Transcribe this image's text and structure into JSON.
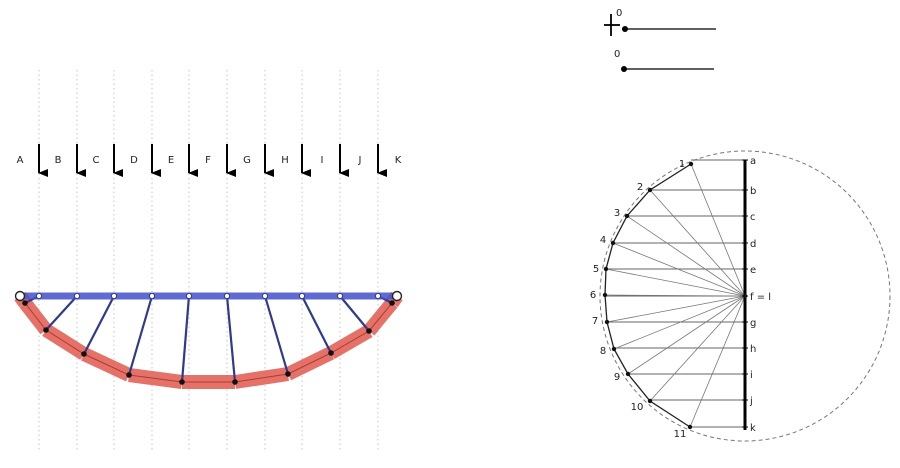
{
  "funicular": {
    "load_labels": [
      "A",
      "B",
      "C",
      "D",
      "E",
      "F",
      "G",
      "H",
      "I",
      "J",
      "K"
    ]
  },
  "sliders": [
    {
      "label": "0"
    },
    {
      "label": "0"
    }
  ],
  "force_diagram": {
    "ray_labels": [
      "1",
      "2",
      "3",
      "4",
      "5",
      "6",
      "7",
      "8",
      "9",
      "10",
      "11"
    ],
    "load_line_labels": [
      "a",
      "b",
      "c",
      "d",
      "e",
      "f = l",
      "g",
      "h",
      "i",
      "j",
      "k"
    ]
  }
}
